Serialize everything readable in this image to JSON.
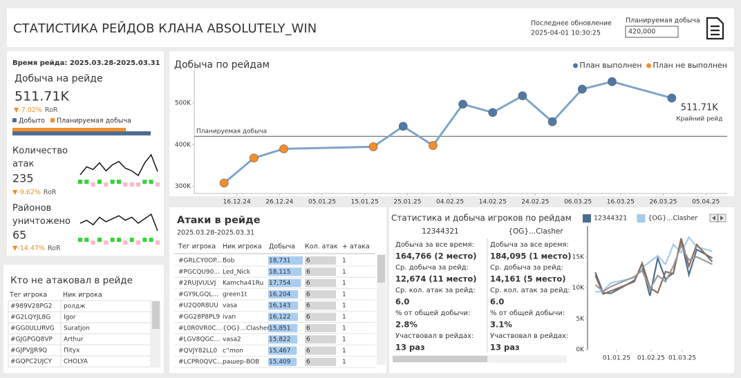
{
  "header": {
    "title": "СТАТИСТИКА РЕЙДОВ КЛАНА ABSOLUTELY_WIN",
    "updated_label": "Последнее обновление",
    "updated": "2025-04-01 10:30:25",
    "plan_label": "Планируемая добыча",
    "plan": {
      "value": 420000,
      "label": "420,000"
    }
  },
  "kpi": {
    "raid_period": "Время рейда: 2025.03.28-2025.03.31",
    "trend_colors": {
      "up": "#33d633",
      "down": "#f9b8c4"
    },
    "loot": {
      "title": "Добыча на рейде",
      "value": 511710,
      "value_label": "511.71K",
      "change": "▼-7.02%",
      "change_label": "RoR",
      "legend": [
        {
          "name": "Добыто",
          "color": "#4e6d92"
        },
        {
          "name": "Планируемая добыча",
          "color": "#f28e2b"
        }
      ]
    },
    "attacks": {
      "title": "Количество атак",
      "value": 235,
      "change": "▼-9.62%",
      "change_label": "RoR",
      "history": [
        230,
        242,
        238,
        248,
        236,
        245,
        250,
        240,
        236,
        229,
        248,
        260,
        235
      ]
    },
    "districts": {
      "title": "Районов уничтожено",
      "value": 65,
      "change": "▼-14.47%",
      "change_label": "RoR",
      "history": [
        70,
        72,
        69,
        74,
        71,
        73,
        75,
        72,
        74,
        70,
        73,
        76,
        65
      ]
    }
  },
  "not_attacked": {
    "title": "Кто не атаковал в рейде",
    "columns": [
      "Тег игрока",
      "Ник игрока"
    ],
    "rows": [
      [
        "#989V28PG2",
        "ролдж"
      ],
      [
        "#G2LQYJL8G",
        "Igor"
      ],
      [
        "#GG0ULURVG",
        "Suratjon"
      ],
      [
        "#GJGPGQ8VP",
        "Arthur"
      ],
      [
        "#GJPVJJR9Q",
        "Піtух"
      ],
      [
        "#GQPC2UJCY",
        "CHOLYA"
      ]
    ]
  },
  "attack_table": {
    "title": "Атаки в рейде",
    "period": "2025.03.28-2025.03.31",
    "columns": [
      "Тег игрока",
      "Ник игрока",
      "Добыча",
      "Кол. атак",
      "+ атака"
    ],
    "rows": [
      [
        "#GRLCY0OP...",
        "Bob",
        {
          "value": 18731,
          "label": "18,731"
        },
        6,
        1
      ],
      [
        "#PGCQU90...",
        "Led_Nick",
        {
          "value": 18115,
          "label": "18,115"
        },
        6,
        1
      ],
      [
        "#2RUJVULVJ",
        "Kamcha41Ru",
        {
          "value": 17754,
          "label": "17,754"
        },
        6,
        1
      ],
      [
        "#GY9LGQL...",
        "green1t",
        {
          "value": 16204,
          "label": "16,204"
        },
        6,
        1
      ],
      [
        "#U2Q0R8UU",
        "vasa",
        {
          "value": 16143,
          "label": "16,143"
        },
        6,
        1
      ],
      [
        "#GG28P8PL9",
        "ivan",
        {
          "value": 16122,
          "label": "16,122"
        },
        6,
        1
      ],
      [
        "#L0R0VR0C...",
        "{OG}...Clasher",
        {
          "value": 15851,
          "label": "15,851"
        },
        6,
        1
      ],
      [
        "#LGV8QGC...",
        "vasa2",
        {
          "value": 15822,
          "label": "15,822"
        },
        6,
        1
      ],
      [
        "#QVJY82LL0",
        "c''mon",
        {
          "value": 15467,
          "label": "15,467"
        },
        6,
        1
      ],
      [
        "#LCPR0QVC...",
        "рашер-BOB",
        {
          "value": 15409,
          "label": "15,409"
        },
        6,
        1
      ]
    ]
  },
  "player_stats": {
    "title": "Статистика и добыча игроков по рейдам",
    "players": [
      {
        "name": "12344321",
        "fields": [
          {
            "label": "Добыча за все время:",
            "value": "164,766 (2 место)"
          },
          {
            "label": "Ср. добыча за рейд:",
            "value": "12,674  (11 место)"
          },
          {
            "label": "Ср. кол. атак за рейд:",
            "value": "6.0"
          },
          {
            "label": "% от общей добычи:",
            "value": "2.8%"
          },
          {
            "label": "Участвовал в рейдах:",
            "value": "13 раз"
          }
        ]
      },
      {
        "name": "{OG}...Clasher",
        "fields": [
          {
            "label": "Добыча за все время:",
            "value": "184,095 (1 место)"
          },
          {
            "label": "Ср. добыча за рейд:",
            "value": "14,161  (5 место)"
          },
          {
            "label": "Ср. кол. атак за рейд:",
            "value": "6.0"
          },
          {
            "label": "% от общей добычи:",
            "value": "3.1%"
          },
          {
            "label": "Участвовал в рейдах:",
            "value": "13 раз"
          }
        ]
      }
    ]
  },
  "chart_data": [
    {
      "type": "line",
      "title": "Добыча по рейдам",
      "x": [
        "13.12.24",
        "20.12.24",
        "27.12.24",
        "17.01.25",
        "24.01.25",
        "31.01.25",
        "07.02.25",
        "14.02.25",
        "21.02.25",
        "28.02.25",
        "07.03.25",
        "14.03.25",
        "28.03.25"
      ],
      "values": [
        308000,
        368000,
        390000,
        395000,
        444000,
        398000,
        497000,
        477000,
        517000,
        455000,
        533000,
        551000,
        511710
      ],
      "value_labels": [
        null,
        null,
        null,
        null,
        null,
        null,
        null,
        null,
        null,
        null,
        null,
        null,
        "511.71K"
      ],
      "annotation": "Крайний рейд",
      "line_color": "#7ea3c8",
      "status_legend": [
        {
          "name": "План выполнен",
          "color": "#4e79a7"
        },
        {
          "name": "План не выполнен",
          "color": "#f28e2b"
        }
      ],
      "legend_position": "top-right",
      "reference_line": {
        "label": "Планируемая добыча"
      },
      "xlim": [
        "06.12.24",
        "10.04.25"
      ],
      "xticks": [
        "16.12.24",
        "26.12.24",
        "05.01.25",
        "15.01.25",
        "25.01.25",
        "04.02.25",
        "14.02.25",
        "24.02.25",
        "06.03.25",
        "16.03.25",
        "26.03.25",
        "05.04.25"
      ],
      "ylim": [
        283000,
        581000
      ],
      "yticks": [
        {
          "value": 300000,
          "label": "300K"
        },
        {
          "value": 400000,
          "label": "400K"
        },
        {
          "value": 500000,
          "label": "500K"
        }
      ]
    },
    {
      "type": "line",
      "x": [
        "13.12.24",
        "20.12.24",
        "27.12.24",
        "17.01.25",
        "24.01.25",
        "31.01.25",
        "07.02.25",
        "14.02.25",
        "21.02.25",
        "28.02.25",
        "07.03.25",
        "14.03.25",
        "28.03.25"
      ],
      "series": [
        {
          "name": "12344321",
          "color": "#4e6d92",
          "values": [
            12500,
            9200,
            9100,
            11200,
            13500,
            8700,
            14800,
            11400,
            12400,
            17800,
            12100,
            16200,
            14800
          ]
        },
        {
          "name": "{OG}...Clasher",
          "color": "#a6cbe8",
          "values": [
            9300,
            9500,
            10800,
            11600,
            13300,
            14200,
            15200,
            13800,
            17000,
            15700,
            18200,
            16600,
            15900
          ]
        },
        {
          "color": "#8c6d5c",
          "values": [
            12000,
            9000,
            9500,
            11000,
            14000,
            10000,
            9200,
            12600,
            12300,
            18000,
            13500,
            17000,
            14200
          ]
        },
        {
          "color": "#9a9a9a",
          "values": [
            10500,
            9400,
            10200,
            11800,
            12800,
            9800,
            12000,
            11000,
            13500,
            16800,
            14500,
            15000,
            13800
          ]
        }
      ],
      "xlim": [
        "06.12.24",
        "06.04.25"
      ],
      "xticks": [
        "01.01.25",
        "01.02.25",
        "01.03.25"
      ],
      "ylim": [
        0,
        20000
      ],
      "yticks": [
        {
          "value": 0,
          "label": "0K"
        },
        {
          "value": 5000,
          "label": "5K"
        },
        {
          "value": 10000,
          "label": "10K"
        },
        {
          "value": 15000,
          "label": "15K"
        }
      ]
    }
  ]
}
